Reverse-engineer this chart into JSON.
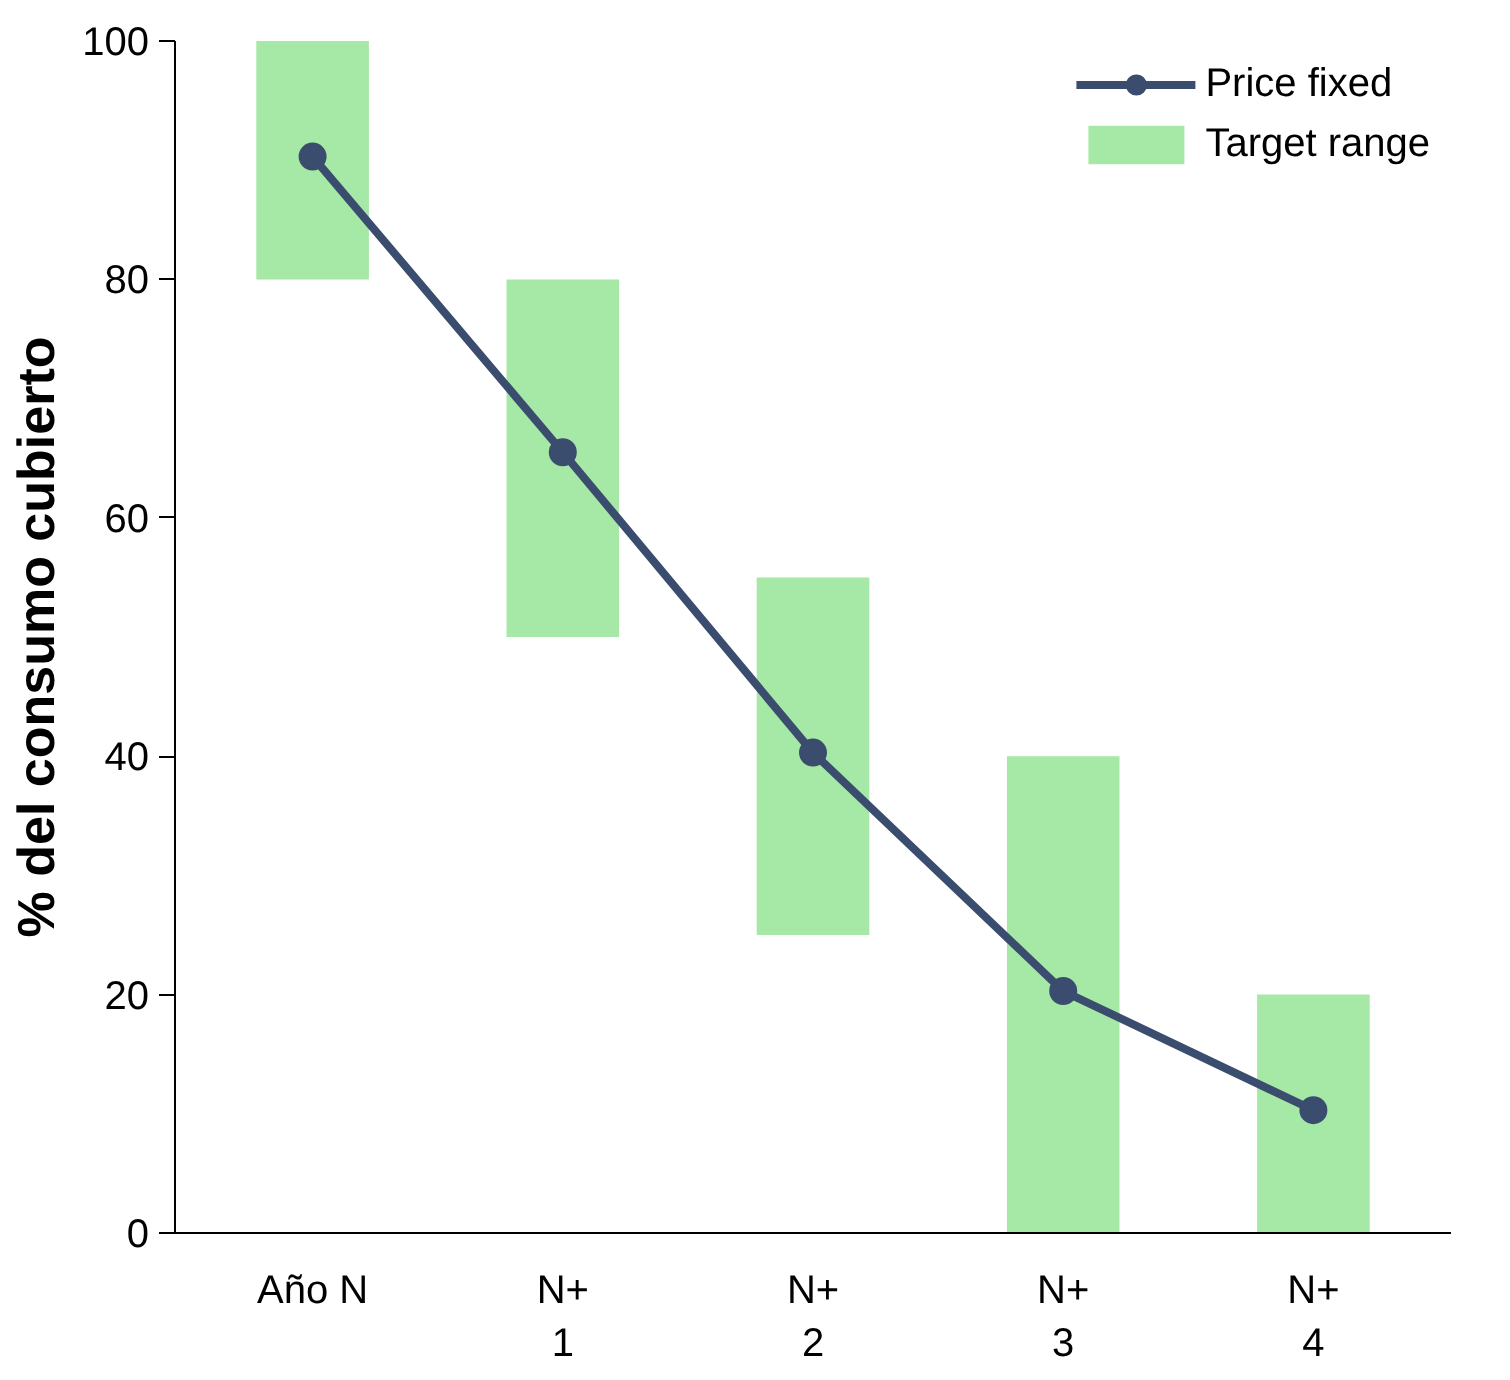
{
  "chart_data": {
    "type": "bar",
    "ylabel": "% del consumo cubierto",
    "categories": [
      "Año N",
      "N+\n1",
      "N+\n2",
      "N+\n3",
      "N+\n4"
    ],
    "series": [
      {
        "name": "Target range",
        "color": "#a6e8a6",
        "base": [
          80,
          50,
          25,
          0,
          0
        ],
        "values": [
          20,
          30,
          30,
          40,
          20
        ]
      },
      {
        "name": "Price fixed",
        "type": "line",
        "color": "#3b4d6e",
        "values": [
          90.3,
          65.5,
          40.3,
          20.3,
          10.3
        ],
        "marker": "circle",
        "line_style": "solid"
      }
    ],
    "ylim": [
      0,
      100
    ],
    "yticks": [
      0,
      20,
      40,
      60,
      80,
      100
    ],
    "grid": false,
    "legend": "top right"
  }
}
